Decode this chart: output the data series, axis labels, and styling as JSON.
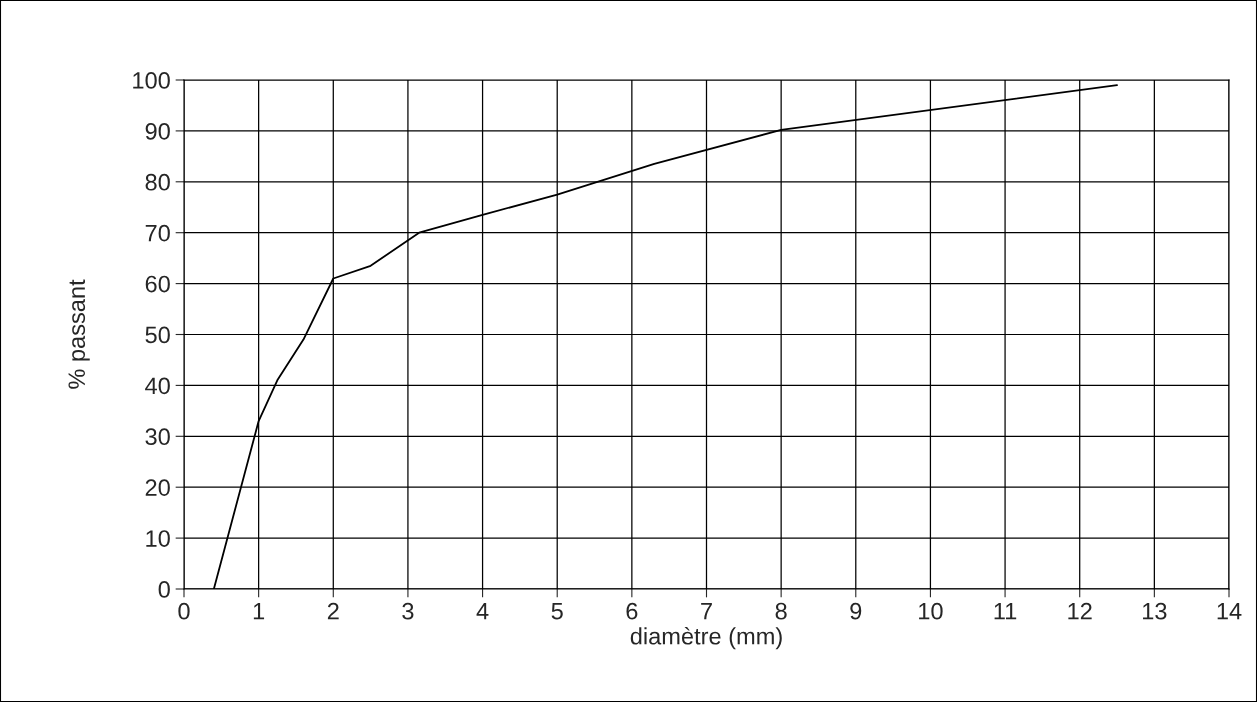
{
  "chart_data": {
    "type": "line",
    "xlabel": "diamètre (mm)",
    "ylabel": "% passant",
    "x": [
      0.4,
      1,
      1.25,
      1.6,
      2,
      2.5,
      3.15,
      4,
      5,
      6.3,
      8,
      12.5
    ],
    "series": [
      {
        "color": "#000000",
        "values": [
          0,
          33,
          41,
          49,
          61,
          63.5,
          70,
          73.5,
          77.5,
          83.5,
          90.2,
          99
        ]
      }
    ],
    "xlim": [
      0,
      14
    ],
    "xticks": [
      0,
      1,
      2,
      3,
      4,
      5,
      6,
      7,
      8,
      9,
      10,
      11,
      12,
      13,
      14
    ],
    "ylim": [
      0,
      100
    ],
    "yticks": [
      0,
      10,
      20,
      30,
      40,
      50,
      60,
      70,
      80,
      90,
      100
    ],
    "grid": true,
    "marker": "none",
    "line_style": "solid"
  }
}
